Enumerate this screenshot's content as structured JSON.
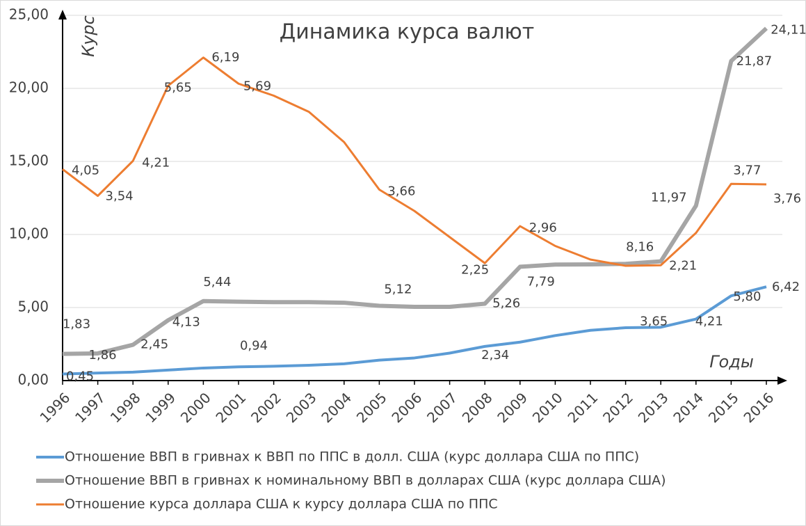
{
  "chart_data": {
    "type": "line",
    "title": "Динамика курса валют",
    "y_label": "Курс",
    "x_label": "Годы",
    "categories": [
      "1996",
      "1997",
      "1998",
      "1999",
      "2000",
      "2001",
      "2002",
      "2003",
      "2004",
      "2005",
      "2006",
      "2007",
      "2008",
      "2009",
      "2010",
      "2011",
      "2012",
      "2013",
      "2014",
      "2015",
      "2016"
    ],
    "ylim": [
      0,
      25
    ],
    "yticks": [
      {
        "value": 0,
        "label": "0,00"
      },
      {
        "value": 5,
        "label": "5,00"
      },
      {
        "value": 10,
        "label": "10,00"
      },
      {
        "value": 15,
        "label": "15,00"
      },
      {
        "value": 20,
        "label": "20,00"
      },
      {
        "value": 25,
        "label": "25,00"
      }
    ],
    "y2lim": [
      0,
      7
    ],
    "grid": true,
    "legend": "bottom",
    "series": [
      {
        "name": "Отношение ВВП в гривнах к номинальному ВВП в долларах США (курс доллара США)",
        "color": "#a5a5a5",
        "values": [
          1.83,
          1.86,
          2.45,
          4.13,
          5.44,
          5.4,
          5.37,
          5.37,
          5.33,
          5.12,
          5.05,
          5.05,
          5.26,
          7.79,
          7.94,
          7.95,
          7.99,
          8.16,
          11.97,
          21.87,
          24.11
        ],
        "value_labels": [
          "1,83",
          "1,86",
          "2,45",
          "4,13",
          "5,44",
          null,
          null,
          null,
          null,
          "5,12",
          null,
          null,
          "5,26",
          "7,79",
          null,
          null,
          null,
          "8,16",
          "11,97",
          "21,87",
          "24,11"
        ]
      },
      {
        "name": "Отношение ВВП в гривнах к ВВП по ППС в долл. США (курс доллара США по ППС)",
        "color": "#5b9bd5",
        "values": [
          0.45,
          0.52,
          0.58,
          0.72,
          0.86,
          0.94,
          0.98,
          1.05,
          1.15,
          1.4,
          1.55,
          1.88,
          2.34,
          2.63,
          3.08,
          3.44,
          3.62,
          3.65,
          4.21,
          5.8,
          6.42
        ],
        "value_labels": [
          "0,45",
          null,
          null,
          null,
          null,
          "0,94",
          null,
          null,
          null,
          null,
          null,
          null,
          "2,34",
          null,
          null,
          null,
          null,
          "3,65",
          "4,21",
          "5,80",
          "6,42"
        ]
      },
      {
        "name": "Отношение курса доллара США к курсу доллара США по ППС",
        "color": "#ed7d31",
        "axis": "y2",
        "values": [
          4.05,
          3.54,
          4.21,
          5.65,
          6.19,
          5.69,
          5.46,
          5.15,
          4.57,
          3.66,
          3.25,
          2.75,
          2.25,
          2.96,
          2.58,
          2.32,
          2.2,
          2.21,
          2.83,
          3.77,
          3.76
        ],
        "value_labels": [
          "4,05",
          "3,54",
          "4,21",
          "5,65",
          "6,19",
          "5,69",
          null,
          null,
          null,
          "3,66",
          null,
          null,
          "2,25",
          "2,96",
          null,
          null,
          null,
          "2,21",
          null,
          "3,77",
          "3,76"
        ]
      }
    ]
  }
}
